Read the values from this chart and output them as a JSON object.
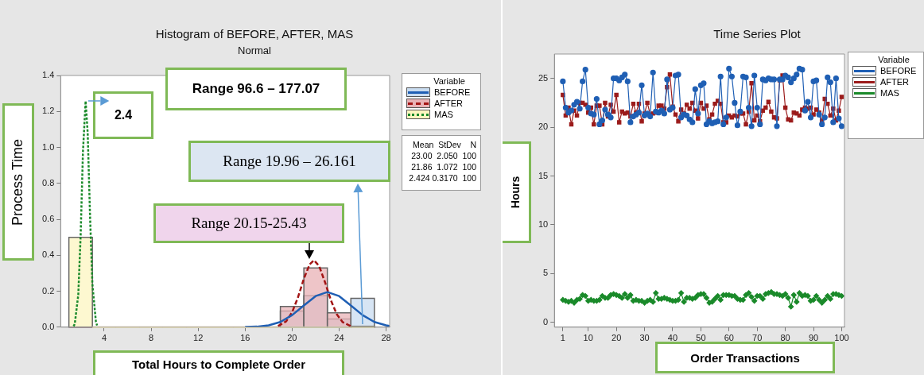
{
  "chart_data": [
    {
      "type": "histogram",
      "title": "Histogram of BEFORE, AFTER, MAS",
      "subtitle": "Normal",
      "xlabel": "Total Hours to Complete Order",
      "ylabel": "Process Time",
      "legend_title": "Variable",
      "legend": "top right",
      "annotations": [
        "Range 96.6 – 177.07",
        {
          "text": "2.4",
          "x": 2.424,
          "y": 1.258
        },
        "Range 19.96 – 26.161",
        "Range 20.15-25.43",
        "Mean  StDev    N",
        "23.00  2.050  100",
        "21.86  1.072  100",
        "2.424 0.3170  100"
      ],
      "bins": [
        1,
        3,
        5,
        7,
        9,
        11,
        13,
        15,
        17,
        19,
        21,
        23,
        25,
        27
      ],
      "xlim": [
        0.3,
        28.3
      ],
      "xticks": [
        4,
        8,
        12,
        16,
        20,
        24,
        28
      ],
      "ylim": [
        0,
        1.4
      ],
      "yticks": [
        {
          "value": 0,
          "label": "0.0"
        },
        {
          "value": 0.2,
          "label": "0.2"
        },
        {
          "value": 0.4,
          "label": "0.4"
        },
        {
          "value": 0.6,
          "label": "0.6"
        },
        {
          "value": 0.8,
          "label": "0.8"
        },
        {
          "value": 1,
          "label": "1.0"
        },
        {
          "value": 1.2,
          "label": "1.2"
        },
        {
          "value": 1.4,
          "label": "1.4"
        }
      ],
      "series": [
        {
          "name": "BEFORE",
          "color": "#c9dcf0",
          "values": [
            0,
            0,
            0,
            0,
            0,
            0,
            0,
            0,
            0,
            0.09,
            0.175,
            0.045,
            0.16
          ]
        },
        {
          "name": "AFTER",
          "color": "#e8b2b6",
          "values": [
            0,
            0,
            0,
            0,
            0,
            0,
            0,
            0,
            0,
            0.115,
            0.33,
            0.08,
            0.005
          ]
        },
        {
          "name": "MAS",
          "color": "#fcf6c0",
          "values": [
            0.5,
            0,
            0,
            0,
            0,
            0,
            0,
            0,
            0,
            0,
            0,
            0,
            0
          ]
        },
        {
          "type": "line",
          "color": "#1f5fb4",
          "line_style": "solid",
          "x": [
            16,
            17,
            18,
            19,
            20,
            21,
            22,
            23,
            24,
            25,
            26,
            27,
            28,
            28.3
          ],
          "values": [
            0.001,
            0.003,
            0.01,
            0.029,
            0.067,
            0.121,
            0.173,
            0.195,
            0.173,
            0.121,
            0.067,
            0.029,
            0.01,
            0.007
          ]
        },
        {
          "type": "line",
          "color": "#a31515",
          "line_style": "dashed",
          "x": [
            18.8,
            19.5,
            20,
            20.5,
            21,
            21.5,
            21.86,
            22.3,
            22.8,
            23.3,
            23.8,
            24.3,
            25
          ],
          "values": [
            0.006,
            0.033,
            0.083,
            0.166,
            0.27,
            0.35,
            0.372,
            0.34,
            0.25,
            0.15,
            0.072,
            0.028,
            0.005
          ]
        },
        {
          "type": "line",
          "color": "#1a8a2a",
          "line_style": "dotted",
          "x": [
            1.4,
            1.5,
            1.8,
            2,
            2.2,
            2.424,
            2.6,
            2.8,
            3,
            3.3,
            3.4
          ],
          "values": [
            0.005,
            0.018,
            0.18,
            0.51,
            0.98,
            1.258,
            1.08,
            0.62,
            0.24,
            0.03,
            0.01
          ]
        }
      ]
    },
    {
      "type": "line",
      "title": "Time Series Plot",
      "xlabel": "Order Transactions",
      "ylabel": "Hours",
      "legend_title": "Variable",
      "legend": "top right",
      "x": [
        1,
        2,
        3,
        4,
        5,
        6,
        7,
        8,
        9,
        10,
        11,
        12,
        13,
        14,
        15,
        16,
        17,
        18,
        19,
        20,
        21,
        22,
        23,
        24,
        25,
        26,
        27,
        28,
        29,
        30,
        31,
        32,
        33,
        34,
        35,
        36,
        37,
        38,
        39,
        40,
        41,
        42,
        43,
        44,
        45,
        46,
        47,
        48,
        49,
        50,
        51,
        52,
        53,
        54,
        55,
        56,
        57,
        58,
        59,
        60,
        61,
        62,
        63,
        64,
        65,
        66,
        67,
        68,
        69,
        70,
        71,
        72,
        73,
        74,
        75,
        76,
        77,
        78,
        79,
        80,
        81,
        82,
        83,
        84,
        85,
        86,
        87,
        88,
        89,
        90,
        91,
        92,
        93,
        94,
        95,
        96,
        97,
        98,
        99,
        100
      ],
      "xlim": [
        -2,
        101
      ],
      "xticks": [
        1,
        10,
        20,
        30,
        40,
        50,
        60,
        70,
        80,
        90,
        100
      ],
      "ylim": [
        -0.5,
        27.5
      ],
      "yticks": [
        0,
        5,
        10,
        15,
        20,
        25
      ],
      "series": [
        {
          "name": "BEFORE",
          "color": "#1f5fb4",
          "marker": "circle",
          "values": [
            24.7,
            22.0,
            21.5,
            21.7,
            22.3,
            22.6,
            21.9,
            24.7,
            25.9,
            22.0,
            21.4,
            21.3,
            22.9,
            20.3,
            20.7,
            21.8,
            21.3,
            21.0,
            25.0,
            25.0,
            24.8,
            25.1,
            25.4,
            24.7,
            20.5,
            21.1,
            21.3,
            21.5,
            24.3,
            21.2,
            21.4,
            21.1,
            25.6,
            21.6,
            21.5,
            21.7,
            21.4,
            24.9,
            21.8,
            22.0,
            25.3,
            25.4,
            21.0,
            21.3,
            21.2,
            20.8,
            20.5,
            23.9,
            21.4,
            24.3,
            24.5,
            20.3,
            20.6,
            20.4,
            20.5,
            20.6,
            25.2,
            20.3,
            21.0,
            26.0,
            25.2,
            22.5,
            20.2,
            21.6,
            25.2,
            25.1,
            22.0,
            20.1,
            25.3,
            22.0,
            20.3,
            24.9,
            24.8,
            25.0,
            24.9,
            24.9,
            20.1,
            24.9,
            24.9,
            25.3,
            25.1,
            24.6,
            25.0,
            25.4,
            26.0,
            25.9,
            21.7,
            22.6,
            21.0,
            24.7,
            24.8,
            21.3,
            20.3,
            21.0,
            25.1,
            24.6,
            20.5,
            25.0,
            20.9,
            20.1
          ]
        },
        {
          "name": "AFTER",
          "color": "#9b1b1b",
          "marker": "square",
          "values": [
            23.3,
            21.2,
            22.0,
            20.3,
            21.7,
            21.2,
            22.5,
            22.5,
            22.3,
            21.5,
            22.0,
            20.3,
            22.2,
            22.2,
            20.3,
            22.5,
            21.1,
            22.3,
            21.6,
            23.3,
            20.5,
            21.6,
            21.4,
            21.5,
            21.1,
            22.4,
            21.5,
            22.4,
            20.6,
            21.4,
            22.5,
            21.3,
            21.4,
            21.5,
            22.2,
            22.2,
            21.9,
            24.1,
            25.4,
            22.1,
            21.3,
            20.6,
            21.8,
            21.4,
            22.3,
            21.9,
            22.5,
            21.7,
            20.9,
            22.5,
            21.9,
            22.2,
            20.8,
            21.3,
            22.4,
            22.7,
            22.4,
            20.5,
            20.5,
            21.2,
            21.0,
            21.2,
            21.1,
            21.4,
            21.4,
            20.3,
            21.6,
            24.5,
            20.7,
            21.2,
            20.6,
            21.7,
            22.0,
            22.6,
            21.6,
            21.0,
            20.9,
            24.8,
            25.3,
            22.0,
            20.8,
            20.7,
            21.5,
            21.4,
            21.2,
            21.8,
            22.0,
            21.9,
            22.0,
            21.3,
            21.8,
            21.5,
            20.6,
            22.9,
            22.4,
            21.2,
            21.9,
            20.7,
            21.7,
            23.1
          ]
        },
        {
          "name": "MAS",
          "color": "#1a8a2a",
          "marker": "diamond",
          "values": [
            2.3,
            2.2,
            2.1,
            2.2,
            2.0,
            2.3,
            2.4,
            2.8,
            2.7,
            2.2,
            2.3,
            2.2,
            2.2,
            2.3,
            2.7,
            2.5,
            2.5,
            2.8,
            2.9,
            2.8,
            2.7,
            2.5,
            2.9,
            2.5,
            2.8,
            2.2,
            2.3,
            2.2,
            2.2,
            2.0,
            2.2,
            2.3,
            2.1,
            3.0,
            2.4,
            2.4,
            2.5,
            2.4,
            2.3,
            2.2,
            2.2,
            2.3,
            3.0,
            2.1,
            2.5,
            2.5,
            2.4,
            2.5,
            2.8,
            2.9,
            2.9,
            2.5,
            2.0,
            2.1,
            2.4,
            2.7,
            2.3,
            2.8,
            2.8,
            2.8,
            2.7,
            2.7,
            2.4,
            2.3,
            2.3,
            2.8,
            3.0,
            2.6,
            2.2,
            2.7,
            2.7,
            2.4,
            2.9,
            3.0,
            3.1,
            2.9,
            2.9,
            2.8,
            2.7,
            2.9,
            2.5,
            1.6,
            2.8,
            2.1,
            3.0,
            2.7,
            2.8,
            2.7,
            2.2,
            2.3,
            2.7,
            2.3,
            2.0,
            2.3,
            2.7,
            2.4,
            2.9,
            2.9,
            2.8,
            2.7
          ]
        }
      ]
    }
  ]
}
